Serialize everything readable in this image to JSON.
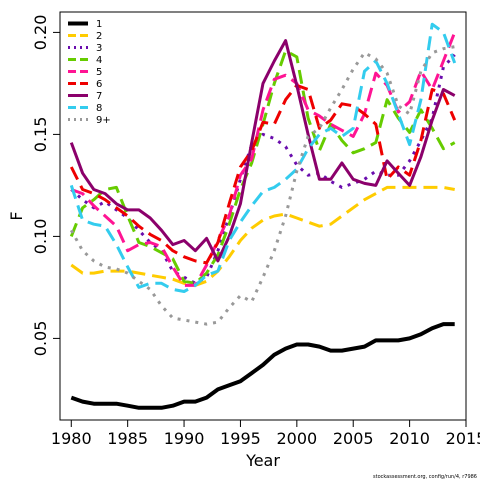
{
  "chart_data": {
    "type": "line",
    "title": "",
    "xlabel": "Year",
    "ylabel": "F",
    "xlim": [
      1979,
      2015
    ],
    "ylim": [
      0.01,
      0.21
    ],
    "x_ticks": [
      1980,
      1985,
      1990,
      1995,
      2000,
      2005,
      2010,
      2015
    ],
    "y_ticks": [
      0.05,
      0.1,
      0.15,
      0.2
    ],
    "x_tick_labels": [
      "1980",
      "1985",
      "1990",
      "1995",
      "2000",
      "2005",
      "2010",
      "2015"
    ],
    "y_tick_labels": [
      "0.05",
      "0.10",
      "0.15",
      "0.20"
    ],
    "legend_position": "top-left",
    "grid": false,
    "footer": "stockassessment.org, config/run/4, r7986",
    "x": [
      1980,
      1981,
      1982,
      1983,
      1984,
      1985,
      1986,
      1987,
      1988,
      1989,
      1990,
      1991,
      1992,
      1993,
      1994,
      1995,
      1996,
      1997,
      1998,
      1999,
      2000,
      2001,
      2002,
      2003,
      2004,
      2005,
      2006,
      2007,
      2008,
      2009,
      2010,
      2011,
      2012,
      2013,
      2014
    ],
    "series": [
      {
        "name": "1",
        "color": "#000000",
        "dash": "solid",
        "width": 4,
        "values": [
          0.021,
          0.019,
          0.018,
          0.018,
          0.018,
          0.017,
          0.016,
          0.016,
          0.016,
          0.017,
          0.019,
          0.019,
          0.021,
          0.025,
          0.027,
          0.029,
          0.033,
          0.037,
          0.042,
          0.045,
          0.047,
          0.047,
          0.046,
          0.044,
          0.044,
          0.045,
          0.046,
          0.049,
          0.049,
          0.049,
          0.05,
          0.052,
          0.055,
          0.057,
          0.057
        ]
      },
      {
        "name": "2",
        "color": "#FFCC00",
        "dash": "dash",
        "width": 3,
        "values": [
          0.086,
          0.082,
          0.082,
          0.083,
          0.083,
          0.083,
          0.082,
          0.081,
          0.08,
          0.079,
          0.077,
          0.076,
          0.078,
          0.083,
          0.09,
          0.098,
          0.104,
          0.108,
          0.11,
          0.111,
          0.109,
          0.107,
          0.105,
          0.106,
          0.11,
          0.114,
          0.118,
          0.121,
          0.124,
          0.124,
          0.124,
          0.124,
          0.124,
          0.124,
          0.123
        ]
      },
      {
        "name": "3",
        "color": "#6A0DAD",
        "dash": "dot",
        "width": 3,
        "values": [
          0.123,
          0.118,
          0.114,
          0.117,
          0.113,
          0.109,
          0.103,
          0.097,
          0.093,
          0.083,
          0.08,
          0.077,
          0.08,
          0.093,
          0.11,
          0.128,
          0.145,
          0.15,
          0.148,
          0.144,
          0.135,
          0.13,
          0.131,
          0.127,
          0.124,
          0.126,
          0.128,
          0.132,
          0.13,
          0.13,
          0.137,
          0.147,
          0.158,
          0.183,
          0.189
        ]
      },
      {
        "name": "4",
        "color": "#66CC00",
        "dash": "dash",
        "width": 3,
        "values": [
          0.1,
          0.114,
          0.118,
          0.123,
          0.124,
          0.11,
          0.097,
          0.095,
          0.092,
          0.089,
          0.078,
          0.077,
          0.082,
          0.091,
          0.106,
          0.123,
          0.136,
          0.155,
          0.175,
          0.191,
          0.188,
          0.158,
          0.142,
          0.155,
          0.147,
          0.141,
          0.143,
          0.146,
          0.167,
          0.158,
          0.151,
          0.162,
          0.153,
          0.143,
          0.146
        ]
      },
      {
        "name": "5",
        "color": "#FF1493",
        "dash": "dash",
        "width": 3,
        "values": [
          0.123,
          0.121,
          0.115,
          0.11,
          0.105,
          0.093,
          0.096,
          0.097,
          0.095,
          0.085,
          0.076,
          0.076,
          0.086,
          0.098,
          0.11,
          0.13,
          0.138,
          0.162,
          0.177,
          0.179,
          0.175,
          0.162,
          0.159,
          0.155,
          0.152,
          0.149,
          0.16,
          0.18,
          0.174,
          0.161,
          0.166,
          0.181,
          0.172,
          0.186,
          0.2
        ]
      },
      {
        "name": "6",
        "color": "#EE0000",
        "dash": "dash",
        "width": 3,
        "values": [
          0.134,
          0.123,
          0.121,
          0.118,
          0.114,
          0.11,
          0.105,
          0.101,
          0.098,
          0.093,
          0.09,
          0.088,
          0.087,
          0.097,
          0.116,
          0.134,
          0.142,
          0.156,
          0.155,
          0.167,
          0.174,
          0.172,
          0.153,
          0.157,
          0.165,
          0.164,
          0.16,
          0.155,
          0.128,
          0.134,
          0.13,
          0.147,
          0.172,
          0.17,
          0.157
        ]
      },
      {
        "name": "7",
        "color": "#8B006B",
        "dash": "solid",
        "width": 3,
        "values": [
          0.146,
          0.131,
          0.123,
          0.121,
          0.116,
          0.113,
          0.113,
          0.109,
          0.103,
          0.096,
          0.098,
          0.093,
          0.099,
          0.088,
          0.1,
          0.116,
          0.146,
          0.175,
          0.186,
          0.196,
          0.174,
          0.15,
          0.128,
          0.128,
          0.136,
          0.128,
          0.126,
          0.125,
          0.137,
          0.131,
          0.125,
          0.139,
          0.157,
          0.172,
          0.169
        ]
      },
      {
        "name": "8",
        "color": "#33CCEE",
        "dash": "dash",
        "width": 3,
        "values": [
          0.125,
          0.108,
          0.106,
          0.105,
          0.096,
          0.085,
          0.075,
          0.077,
          0.077,
          0.074,
          0.073,
          0.076,
          0.081,
          0.083,
          0.098,
          0.107,
          0.115,
          0.122,
          0.124,
          0.128,
          0.133,
          0.143,
          0.15,
          0.153,
          0.149,
          0.153,
          0.181,
          0.186,
          0.175,
          0.16,
          0.145,
          0.167,
          0.204,
          0.2,
          0.185
        ]
      },
      {
        "name": "9+",
        "color": "#999999",
        "dash": "dot",
        "width": 3,
        "values": [
          0.103,
          0.093,
          0.088,
          0.085,
          0.084,
          0.082,
          0.078,
          0.074,
          0.066,
          0.06,
          0.059,
          0.058,
          0.057,
          0.058,
          0.065,
          0.071,
          0.068,
          0.08,
          0.093,
          0.11,
          0.132,
          0.149,
          0.153,
          0.163,
          0.172,
          0.182,
          0.19,
          0.187,
          0.18,
          0.164,
          0.16,
          0.181,
          0.19,
          0.192,
          0.193
        ]
      }
    ]
  }
}
